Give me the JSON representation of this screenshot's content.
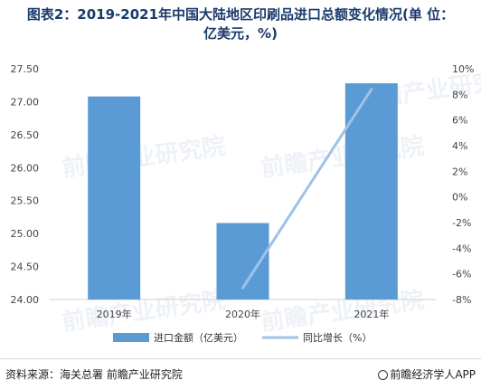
{
  "title": {
    "line1": "图表2：2019-2021年中国大陆地区印刷品进口总额变化情况(单 位：",
    "line2": "亿美元，%)"
  },
  "chart_data": {
    "type": "bar",
    "categories": [
      "2019年",
      "2020年",
      "2021年"
    ],
    "series": [
      {
        "name": "进口金额（亿美元）",
        "kind": "bar",
        "axis": "left",
        "color": "#5b9bd5",
        "values": [
          27.08,
          25.16,
          27.28
        ]
      },
      {
        "name": "同比增长（%）",
        "kind": "line",
        "axis": "right",
        "color": "#9dc3e6",
        "values": [
          null,
          -7.1,
          8.4
        ]
      }
    ],
    "y_left": {
      "min": 24.0,
      "max": 27.5,
      "ticks": [
        24.0,
        24.5,
        25.0,
        25.5,
        26.0,
        26.5,
        27.0,
        27.5
      ],
      "tick_labels": [
        "24.00",
        "24.50",
        "25.00",
        "25.50",
        "26.00",
        "26.50",
        "27.00",
        "27.50"
      ]
    },
    "y_right": {
      "min": -8,
      "max": 10,
      "ticks": [
        -8,
        -6,
        -4,
        -2,
        0,
        2,
        4,
        6,
        8,
        10
      ],
      "tick_labels": [
        "-8%",
        "-6%",
        "-4%",
        "-2%",
        "0%",
        "2%",
        "4%",
        "6%",
        "8%",
        "10%"
      ]
    },
    "grid": false,
    "legend": "bottom"
  },
  "watermark": "前瞻产业研究院",
  "footer": {
    "source": "资料来源：海关总署 前瞻产业研究院",
    "brand": "前瞻经济学人APP",
    "brand_icon": "brand-logo-icon"
  }
}
